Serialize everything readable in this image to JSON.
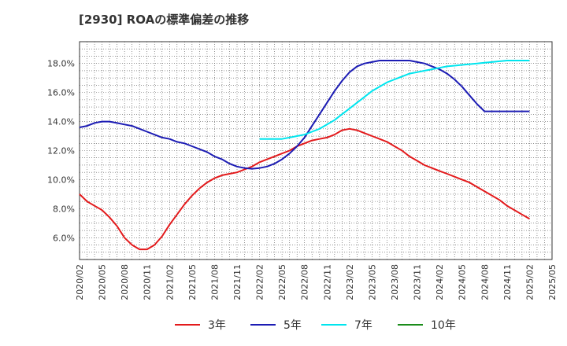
{
  "chart_data": {
    "type": "line",
    "title": "[2930]  ROAの標準偏差の推移",
    "xlabel": "",
    "ylabel": "",
    "ylim": [
      4.5,
      19.5
    ],
    "y_ticks": [
      "6.0%",
      "8.0%",
      "10.0%",
      "12.0%",
      "14.0%",
      "16.0%",
      "18.0%"
    ],
    "y_tick_values": [
      6,
      8,
      10,
      12,
      14,
      16,
      18
    ],
    "x_ticks": [
      "2020/02",
      "2020/05",
      "2020/08",
      "2020/11",
      "2021/02",
      "2021/05",
      "2021/08",
      "2021/11",
      "2022/02",
      "2022/05",
      "2022/08",
      "2022/11",
      "2023/02",
      "2023/05",
      "2023/08",
      "2023/11",
      "2024/02",
      "2024/05",
      "2024/08",
      "2024/11",
      "2025/02",
      "2025/05"
    ],
    "grid": true,
    "legend_position": "bottom",
    "series": [
      {
        "name": "3年",
        "color": "#e31a1c",
        "x": [
          "2020/02",
          "2020/03",
          "2020/04",
          "2020/05",
          "2020/06",
          "2020/07",
          "2020/08",
          "2020/09",
          "2020/10",
          "2020/11",
          "2020/12",
          "2021/01",
          "2021/02",
          "2021/03",
          "2021/04",
          "2021/05",
          "2021/06",
          "2021/07",
          "2021/08",
          "2021/09",
          "2021/10",
          "2021/11",
          "2021/12",
          "2022/01",
          "2022/02",
          "2022/03",
          "2022/04",
          "2022/05",
          "2022/06",
          "2022/07",
          "2022/08",
          "2022/09",
          "2022/10",
          "2022/11",
          "2022/12",
          "2023/01",
          "2023/02",
          "2023/03",
          "2023/04",
          "2023/05",
          "2023/06",
          "2023/07",
          "2023/08",
          "2023/09",
          "2023/10",
          "2023/11",
          "2023/12",
          "2024/01",
          "2024/02",
          "2024/03",
          "2024/04",
          "2024/05",
          "2024/06",
          "2024/07",
          "2024/08",
          "2024/09",
          "2024/10",
          "2024/11",
          "2024/12",
          "2025/01",
          "2025/02"
        ],
        "values": [
          9.0,
          8.5,
          8.2,
          7.9,
          7.4,
          6.8,
          6.0,
          5.5,
          5.2,
          5.2,
          5.5,
          6.1,
          6.9,
          7.6,
          8.3,
          8.9,
          9.4,
          9.8,
          10.1,
          10.3,
          10.4,
          10.5,
          10.7,
          10.9,
          11.2,
          11.4,
          11.6,
          11.8,
          12.0,
          12.3,
          12.5,
          12.7,
          12.8,
          12.9,
          13.1,
          13.4,
          13.5,
          13.4,
          13.2,
          13.0,
          12.8,
          12.6,
          12.3,
          12.0,
          11.6,
          11.3,
          11.0,
          10.8,
          10.6,
          10.4,
          10.2,
          10.0,
          9.8,
          9.5,
          9.2,
          8.9,
          8.6,
          8.2,
          7.9,
          7.6,
          7.3
        ]
      },
      {
        "name": "5年",
        "color": "#1c1cb4",
        "x": [
          "2020/02",
          "2020/03",
          "2020/04",
          "2020/05",
          "2020/06",
          "2020/07",
          "2020/08",
          "2020/09",
          "2020/10",
          "2020/11",
          "2020/12",
          "2021/01",
          "2021/02",
          "2021/03",
          "2021/04",
          "2021/05",
          "2021/06",
          "2021/07",
          "2021/08",
          "2021/09",
          "2021/10",
          "2021/11",
          "2021/12",
          "2022/01",
          "2022/02",
          "2022/03",
          "2022/04",
          "2022/05",
          "2022/06",
          "2022/07",
          "2022/08",
          "2022/09",
          "2022/10",
          "2022/11",
          "2022/12",
          "2023/01",
          "2023/02",
          "2023/03",
          "2023/04",
          "2023/05",
          "2023/06",
          "2023/07",
          "2023/08",
          "2023/09",
          "2023/10",
          "2023/11",
          "2023/12",
          "2024/01",
          "2024/02",
          "2024/03",
          "2024/04",
          "2024/05",
          "2024/06",
          "2024/07",
          "2024/08",
          "2024/09",
          "2024/10",
          "2024/11",
          "2024/12",
          "2025/01",
          "2025/02"
        ],
        "values": [
          13.6,
          13.7,
          13.9,
          14.0,
          14.0,
          13.9,
          13.8,
          13.7,
          13.5,
          13.3,
          13.1,
          12.9,
          12.8,
          12.6,
          12.5,
          12.3,
          12.1,
          11.9,
          11.6,
          11.4,
          11.1,
          10.9,
          10.8,
          10.75,
          10.8,
          10.9,
          11.1,
          11.4,
          11.8,
          12.3,
          12.9,
          13.7,
          14.5,
          15.3,
          16.1,
          16.8,
          17.4,
          17.8,
          18.0,
          18.1,
          18.2,
          18.2,
          18.2,
          18.2,
          18.2,
          18.1,
          18.0,
          17.8,
          17.6,
          17.3,
          16.9,
          16.4,
          15.8,
          15.2,
          14.7,
          14.7,
          14.7,
          14.7,
          14.7,
          14.7,
          14.7
        ]
      },
      {
        "name": "7年",
        "color": "#00e5ee",
        "x": [
          "2022/02",
          "2022/03",
          "2022/04",
          "2022/05",
          "2022/06",
          "2022/07",
          "2022/08",
          "2022/09",
          "2022/10",
          "2022/11",
          "2022/12",
          "2023/01",
          "2023/02",
          "2023/03",
          "2023/04",
          "2023/05",
          "2023/06",
          "2023/07",
          "2023/08",
          "2023/09",
          "2023/10",
          "2023/11",
          "2023/12",
          "2024/01",
          "2024/02",
          "2024/03",
          "2024/04",
          "2024/05",
          "2024/06",
          "2024/07",
          "2024/08",
          "2024/09",
          "2024/10",
          "2024/11",
          "2024/12",
          "2025/01",
          "2025/02"
        ],
        "values": [
          12.8,
          12.8,
          12.8,
          12.8,
          12.9,
          13.0,
          13.1,
          13.3,
          13.5,
          13.8,
          14.1,
          14.5,
          14.9,
          15.3,
          15.7,
          16.1,
          16.4,
          16.7,
          16.9,
          17.1,
          17.3,
          17.4,
          17.5,
          17.6,
          17.7,
          17.8,
          17.85,
          17.9,
          17.95,
          18.0,
          18.05,
          18.1,
          18.15,
          18.2,
          18.2,
          18.2,
          18.2
        ]
      },
      {
        "name": "10年",
        "color": "#1a8c1a",
        "x": [],
        "values": []
      }
    ]
  }
}
